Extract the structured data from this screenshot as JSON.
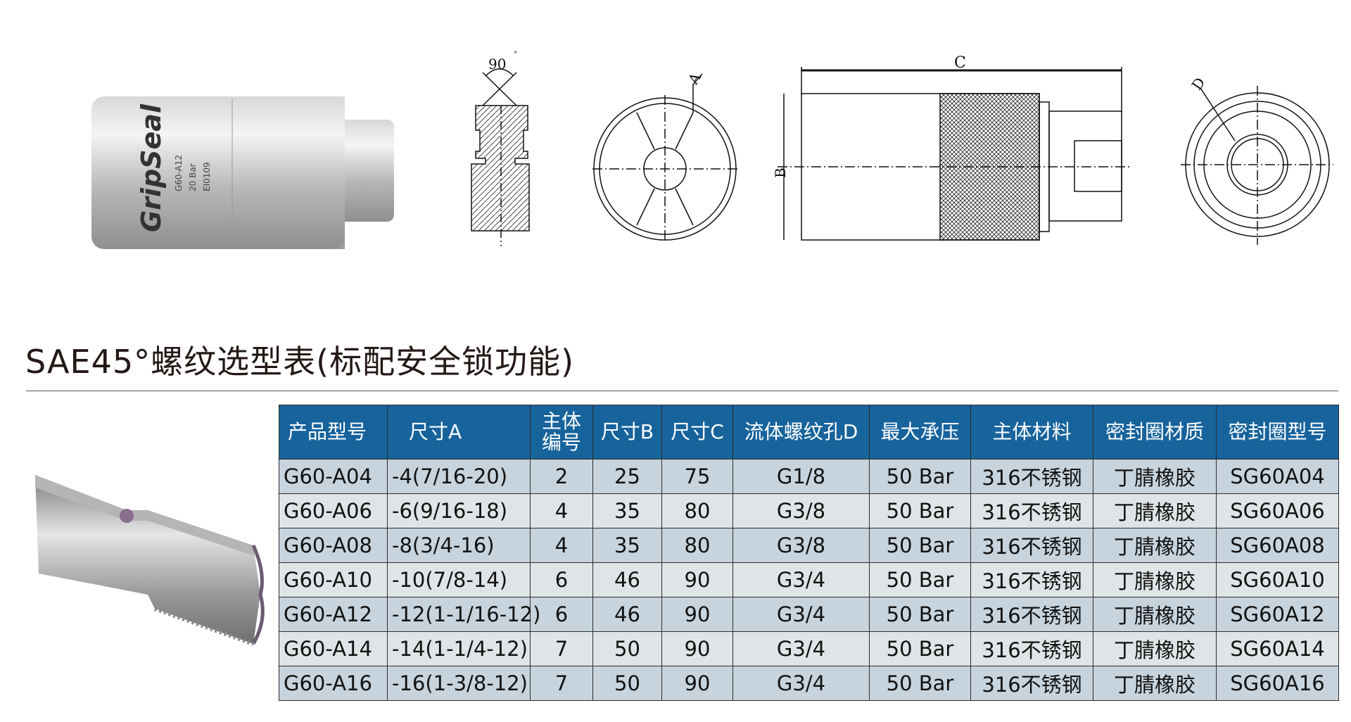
{
  "product_photo": {
    "brand": "GripSeal",
    "marking_lines": [
      "G60-A12",
      "20 Bar",
      "EI0109"
    ]
  },
  "drawing_labels": {
    "angle": "90",
    "degree": "°",
    "dim_a": "A",
    "dim_b": "B",
    "dim_c": "C",
    "dim_d": "D"
  },
  "title": "SAE45°螺纹选型表(标配安全锁功能)",
  "colors": {
    "header_bg": "#17639c",
    "row_odd": "#c7d4de",
    "row_even": "#dfe4e6"
  },
  "table": {
    "headers": [
      "产品型号",
      "尺寸A",
      "主体编号",
      "尺寸B",
      "尺寸C",
      "流体螺纹孔D",
      "最大承压",
      "主体材料",
      "密封圈材质",
      "密封圈型号"
    ],
    "header_main_body_lines": [
      "主体",
      "编号"
    ],
    "rows": [
      [
        "G60-A04",
        "-4(7/16-20)",
        "2",
        "25",
        "75",
        "G1/8",
        "50 Bar",
        "316不锈钢",
        "丁腈橡胶",
        "SG60A04"
      ],
      [
        "G60-A06",
        "-6(9/16-18)",
        "4",
        "35",
        "80",
        "G3/8",
        "50 Bar",
        "316不锈钢",
        "丁腈橡胶",
        "SG60A06"
      ],
      [
        "G60-A08",
        "-8(3/4-16)",
        "4",
        "35",
        "80",
        "G3/8",
        "50 Bar",
        "316不锈钢",
        "丁腈橡胶",
        "SG60A08"
      ],
      [
        "G60-A10",
        "-10(7/8-14)",
        "6",
        "46",
        "90",
        "G3/4",
        "50 Bar",
        "316不锈钢",
        "丁腈橡胶",
        "SG60A10"
      ],
      [
        "G60-A12",
        "-12(1-1/16-12)",
        "6",
        "46",
        "90",
        "G3/4",
        "50 Bar",
        "316不锈钢",
        "丁腈橡胶",
        "SG60A12"
      ],
      [
        "G60-A14",
        "-14(1-1/4-12)",
        "7",
        "50",
        "90",
        "G3/4",
        "50 Bar",
        "316不锈钢",
        "丁腈橡胶",
        "SG60A14"
      ],
      [
        "G60-A16",
        "-16(1-3/8-12)",
        "7",
        "50",
        "90",
        "G3/4",
        "50 Bar",
        "316不锈钢",
        "丁腈橡胶",
        "SG60A16"
      ]
    ]
  }
}
